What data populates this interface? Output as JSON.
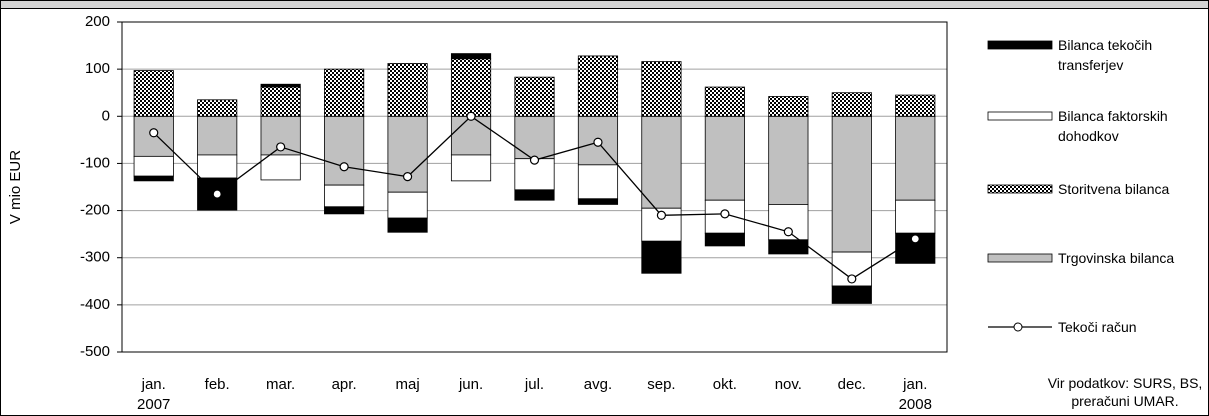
{
  "chart_data": {
    "type": "bar",
    "stacked": true,
    "ylabel": "V mio EUR",
    "categories": [
      "jan. 2007",
      "feb.",
      "mar.",
      "apr.",
      "maj",
      "jun.",
      "jul.",
      "avg.",
      "sep.",
      "okt.",
      "nov.",
      "dec.",
      "jan. 2008"
    ],
    "series": [
      {
        "name": "Bilanca tekočih transferjev",
        "color": "#000000",
        "values": [
          -10,
          -68,
          6,
          -15,
          -30,
          11,
          -22,
          -12,
          -68,
          -27,
          -30,
          -37,
          -64
        ]
      },
      {
        "name": "Bilanca faktorskih dohodkov",
        "color": "#ffffff",
        "values": [
          -42,
          -49,
          -53,
          -46,
          -55,
          -55,
          -66,
          -72,
          -70,
          -70,
          -75,
          -72,
          -70
        ]
      },
      {
        "name": "Storitvena bilanca",
        "color": "#000000",
        "pattern": "checker",
        "values": [
          97,
          35,
          62,
          100,
          112,
          122,
          83,
          128,
          116,
          62,
          42,
          50,
          45
        ]
      },
      {
        "name": "Trgovinska bilanca",
        "color": "#c0c0c0",
        "values": [
          -85,
          -82,
          -82,
          -146,
          -161,
          -82,
          -90,
          -103,
          -195,
          -178,
          -187,
          -288,
          -178
        ]
      },
      {
        "name": "Tekoči račun",
        "type": "line",
        "color": "#000000",
        "values": [
          -35,
          -165,
          -65,
          -107,
          -128,
          0,
          -93,
          -55,
          -210,
          -207,
          -245,
          -345,
          -260
        ]
      }
    ],
    "ylim": [
      -500,
      200
    ],
    "yticks": [
      -500,
      -400,
      -300,
      -200,
      -100,
      0,
      100,
      200
    ],
    "grid": true,
    "source": "Vir podatkov: SURS, BS, preračuni UMAR."
  }
}
